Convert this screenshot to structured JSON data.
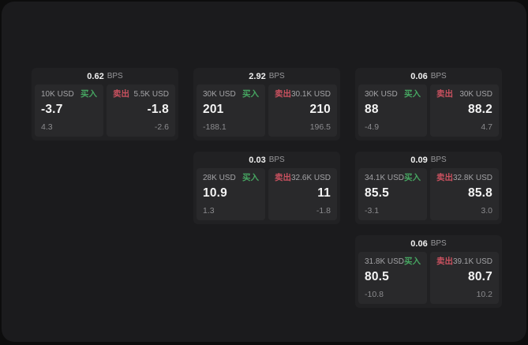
{
  "labels": {
    "bps_unit": "BPS",
    "buy": "买入",
    "sell": "卖出"
  },
  "colors": {
    "buy": "#46a561",
    "sell": "#c9515f",
    "panel": "#1b1b1d",
    "card": "#212123",
    "tile": "#29292b",
    "page_background": "#0d0d0d"
  },
  "cards": [
    {
      "bps": "0.62",
      "buy": {
        "size": "10K USD",
        "price": "-3.7",
        "delta": "4.3"
      },
      "sell": {
        "size": "5.5K USD",
        "price": "-1.8",
        "delta": "-2.6"
      }
    },
    {
      "bps": "2.92",
      "buy": {
        "size": "30K USD",
        "price": "201",
        "delta": "-188.1"
      },
      "sell": {
        "size": "30.1K USD",
        "price": "210",
        "delta": "196.5"
      }
    },
    {
      "bps": "0.06",
      "buy": {
        "size": "30K USD",
        "price": "88",
        "delta": "-4.9"
      },
      "sell": {
        "size": "30K USD",
        "price": "88.2",
        "delta": "4.7"
      }
    },
    {
      "bps": "0.03",
      "buy": {
        "size": "28K USD",
        "price": "10.9",
        "delta": "1.3"
      },
      "sell": {
        "size": "32.6K USD",
        "price": "11",
        "delta": "-1.8"
      }
    },
    {
      "bps": "0.09",
      "buy": {
        "size": "34.1K USD",
        "price": "85.5",
        "delta": "-3.1"
      },
      "sell": {
        "size": "32.8K USD",
        "price": "85.8",
        "delta": "3.0"
      }
    },
    {
      "bps": "0.06",
      "buy": {
        "size": "31.8K USD",
        "price": "80.5",
        "delta": "-10.8"
      },
      "sell": {
        "size": "39.1K USD",
        "price": "80.7",
        "delta": "10.2"
      }
    }
  ]
}
